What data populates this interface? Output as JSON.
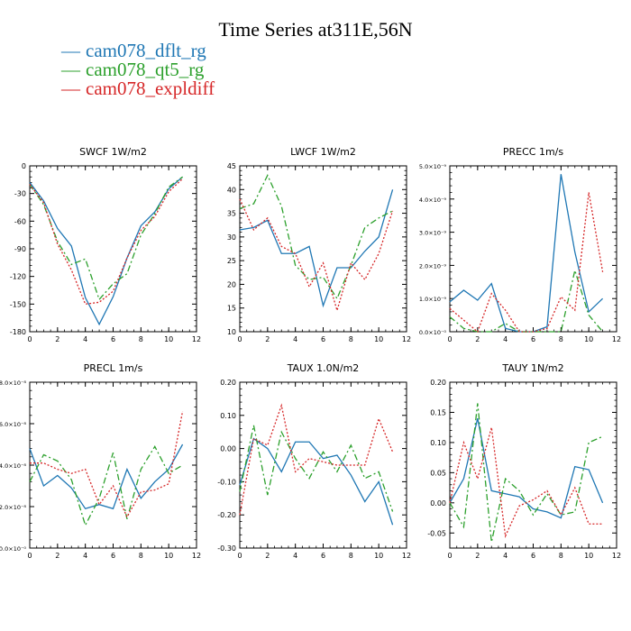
{
  "title": "Time Series at311E,56N",
  "legend": [
    {
      "label": "cam078_dflt_rg",
      "color": "#1f77b4",
      "dash": "solid"
    },
    {
      "label": "cam078_qt5_rg",
      "color": "#2ca02c",
      "dash": "dashdot"
    },
    {
      "label": "cam078_expldiff",
      "color": "#d62728",
      "dash": "dotted"
    }
  ],
  "chart_data": [
    {
      "type": "line",
      "title": "SWCF   1W/m2",
      "x": [
        0,
        1,
        2,
        3,
        4,
        5,
        6,
        7,
        8,
        9,
        10,
        11
      ],
      "xticks": [
        "0",
        "2",
        "4",
        "6",
        "8",
        "10",
        "12"
      ],
      "xlim": [
        0,
        12
      ],
      "ylim": [
        -180,
        0
      ],
      "yticks": [
        0,
        -30,
        -60,
        -90,
        -120,
        -150,
        -180
      ],
      "ytick_labels": [
        "0",
        "-30",
        "-60",
        "-90",
        "-120",
        "-150",
        "-180"
      ],
      "series": [
        {
          "name": "cam078_dflt_rg",
          "values": [
            -18,
            -38,
            -68,
            -87,
            -143,
            -172,
            -142,
            -100,
            -65,
            -50,
            -25,
            -12
          ]
        },
        {
          "name": "cam078_qt5_rg",
          "values": [
            -20,
            -42,
            -82,
            -107,
            -101,
            -145,
            -128,
            -117,
            -75,
            -52,
            -23,
            -12
          ]
        },
        {
          "name": "cam078_expldiff",
          "values": [
            -20,
            -40,
            -85,
            -113,
            -150,
            -148,
            -136,
            -100,
            -70,
            -55,
            -28,
            -14
          ]
        }
      ]
    },
    {
      "type": "line",
      "title": "LWCF   1W/m2",
      "x": [
        0,
        1,
        2,
        3,
        4,
        5,
        6,
        7,
        8,
        9,
        10,
        11
      ],
      "xticks": [
        "0",
        "2",
        "4",
        "6",
        "8",
        "10",
        "12"
      ],
      "xlim": [
        0,
        12
      ],
      "ylim": [
        10,
        45
      ],
      "yticks": [
        45,
        40,
        35,
        30,
        25,
        20,
        15,
        10
      ],
      "ytick_labels": [
        "45",
        "40",
        "35",
        "30",
        "25",
        "20",
        "15",
        "10"
      ],
      "series": [
        {
          "name": "cam078_dflt_rg",
          "values": [
            31.5,
            32,
            33.5,
            26.5,
            26.5,
            28,
            15.5,
            23.5,
            23.5,
            27,
            30,
            40
          ]
        },
        {
          "name": "cam078_qt5_rg",
          "values": [
            36,
            37,
            43,
            36.5,
            24,
            21,
            21.5,
            17,
            24,
            32,
            34,
            35.5
          ]
        },
        {
          "name": "cam078_expldiff",
          "values": [
            38,
            31.5,
            34,
            28,
            26.5,
            19.5,
            24.5,
            14.5,
            24.5,
            21,
            26.5,
            35.5
          ]
        }
      ]
    },
    {
      "type": "line",
      "title": "PRECC   1m/s",
      "x": [
        0,
        1,
        2,
        3,
        4,
        5,
        6,
        7,
        8,
        9,
        10,
        11
      ],
      "xticks": [
        "0",
        "2",
        "4",
        "6",
        "8",
        "10",
        "12"
      ],
      "xlim": [
        0,
        12
      ],
      "ylim": [
        0,
        5e-09
      ],
      "yticks": [
        5e-09,
        4e-09,
        3e-09,
        2e-09,
        1e-09,
        0
      ],
      "ytick_labels": [
        "5.0×10⁻⁹",
        "4.0×10⁻⁹",
        "3.0×10⁻⁹",
        "2.0×10⁻⁹",
        "1.0×10⁻⁹",
        "0.0×10⁻⁰"
      ],
      "series": [
        {
          "name": "cam078_dflt_rg",
          "values": [
            9e-10,
            1.25e-09,
            9.5e-10,
            1.45e-09,
            1e-10,
            0,
            0,
            1.5e-10,
            4.75e-09,
            2.4e-09,
            6e-10,
            1e-09
          ]
        },
        {
          "name": "cam078_qt5_rg",
          "values": [
            4.5e-10,
            1e-10,
            0,
            0,
            2.5e-10,
            0,
            0,
            0,
            0,
            1.85e-09,
            5e-10,
            0
          ]
        },
        {
          "name": "cam078_expldiff",
          "values": [
            7e-10,
            3.5e-10,
            0,
            1.15e-09,
            6.5e-10,
            0,
            0,
            1e-10,
            1.05e-09,
            6.5e-10,
            4.2e-09,
            1.8e-09
          ]
        }
      ]
    },
    {
      "type": "line",
      "title": "PRECL   1m/s",
      "x": [
        0,
        1,
        2,
        3,
        4,
        5,
        6,
        7,
        8,
        9,
        10,
        11
      ],
      "xticks": [
        "0",
        "2",
        "4",
        "6",
        "8",
        "10",
        "12"
      ],
      "xlim": [
        0,
        12
      ],
      "ylim": [
        0,
        8e-08
      ],
      "yticks": [
        8e-08,
        6e-08,
        4e-08,
        2e-08,
        0
      ],
      "ytick_labels": [
        "8.0×10⁻⁸",
        "6.0×10⁻⁸",
        "4.0×10⁻⁸",
        "2.0×10⁻⁸",
        "0.0×10⁻⁰"
      ],
      "series": [
        {
          "name": "cam078_dflt_rg",
          "values": [
            4.8e-08,
            3e-08,
            3.5e-08,
            2.9e-08,
            1.9e-08,
            2.1e-08,
            1.9e-08,
            3.8e-08,
            2.4e-08,
            3.2e-08,
            3.8e-08,
            5e-08
          ]
        },
        {
          "name": "cam078_qt5_rg",
          "values": [
            3.2e-08,
            4.5e-08,
            4.2e-08,
            3.3e-08,
            1.1e-08,
            2.4e-08,
            4.6e-08,
            1.4e-08,
            3.8e-08,
            4.9e-08,
            3.6e-08,
            4e-08
          ]
        },
        {
          "name": "cam078_expldiff",
          "values": [
            4.1e-08,
            4.1e-08,
            3.8e-08,
            3.6e-08,
            3.8e-08,
            2.1e-08,
            3e-08,
            1.5e-08,
            2.7e-08,
            2.8e-08,
            3.1e-08,
            6.6e-08
          ]
        }
      ]
    },
    {
      "type": "line",
      "title": "TAUX   1.0N/m2",
      "x": [
        0,
        1,
        2,
        3,
        4,
        5,
        6,
        7,
        8,
        9,
        10,
        11
      ],
      "xticks": [
        "0",
        "2",
        "4",
        "6",
        "8",
        "10",
        "12"
      ],
      "xlim": [
        0,
        12
      ],
      "ylim": [
        -0.3,
        0.2
      ],
      "yticks": [
        0.2,
        0.1,
        0,
        -0.1,
        -0.2,
        -0.3
      ],
      "ytick_labels": [
        "0.20",
        "0.10",
        "0.00",
        "-0.10",
        "-0.20",
        "-0.30"
      ],
      "series": [
        {
          "name": "cam078_dflt_rg",
          "values": [
            -0.11,
            0.03,
            0.0,
            -0.07,
            0.02,
            0.02,
            -0.03,
            -0.02,
            -0.08,
            -0.16,
            -0.1,
            -0.23
          ]
        },
        {
          "name": "cam078_qt5_rg",
          "values": [
            -0.13,
            0.07,
            -0.14,
            0.05,
            -0.03,
            -0.09,
            -0.01,
            -0.07,
            0.01,
            -0.09,
            -0.07,
            -0.19
          ]
        },
        {
          "name": "cam078_expldiff",
          "values": [
            -0.2,
            0.03,
            0.01,
            0.13,
            -0.07,
            -0.03,
            -0.04,
            -0.05,
            -0.05,
            -0.05,
            0.09,
            -0.01
          ]
        }
      ]
    },
    {
      "type": "line",
      "title": "TAUY   1N/m2",
      "x": [
        0,
        1,
        2,
        3,
        4,
        5,
        6,
        7,
        8,
        9,
        10,
        11
      ],
      "xticks": [
        "0",
        "2",
        "4",
        "6",
        "8",
        "10",
        "12"
      ],
      "xlim": [
        0,
        12
      ],
      "ylim": [
        -0.075,
        0.2
      ],
      "yticks": [
        0.2,
        0.15,
        0.1,
        0.05,
        0,
        -0.05
      ],
      "ytick_labels": [
        "0.20",
        "0.15",
        "0.10",
        "0.05",
        "0.00",
        "-0.05"
      ],
      "series": [
        {
          "name": "cam078_dflt_rg",
          "values": [
            0.0,
            0.04,
            0.14,
            0.02,
            0.015,
            0.01,
            -0.01,
            -0.015,
            -0.025,
            0.06,
            0.055,
            0.0
          ]
        },
        {
          "name": "cam078_qt5_rg",
          "values": [
            0.0,
            -0.04,
            0.165,
            -0.065,
            0.04,
            0.02,
            -0.02,
            0.015,
            -0.02,
            -0.015,
            0.1,
            0.11
          ]
        },
        {
          "name": "cam078_expldiff",
          "values": [
            0.0,
            0.1,
            0.04,
            0.125,
            -0.055,
            -0.005,
            0.005,
            0.02,
            -0.02,
            0.025,
            -0.035,
            -0.035
          ]
        }
      ]
    }
  ]
}
